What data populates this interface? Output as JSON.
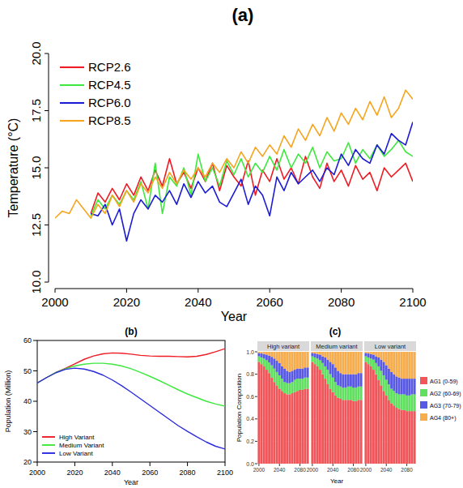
{
  "chart_data": [
    {
      "type": "line",
      "title": "(a)",
      "x_label": "Year",
      "y_label": "Temperature (°C)",
      "x": [
        2000,
        2002,
        2004,
        2006,
        2008,
        2010,
        2012,
        2014,
        2016,
        2018,
        2020,
        2022,
        2024,
        2026,
        2028,
        2030,
        2032,
        2034,
        2036,
        2038,
        2040,
        2042,
        2044,
        2046,
        2048,
        2050,
        2052,
        2054,
        2056,
        2058,
        2060,
        2062,
        2064,
        2066,
        2068,
        2070,
        2072,
        2074,
        2076,
        2078,
        2080,
        2082,
        2084,
        2086,
        2088,
        2090,
        2092,
        2094,
        2096,
        2098,
        2100
      ],
      "xlim": [
        2000,
        2100
      ],
      "xticks": [
        2000,
        2020,
        2040,
        2060,
        2080,
        2100
      ],
      "ylim": [
        10,
        20
      ],
      "yticks": [
        {
          "value": 10,
          "label": "10.0"
        },
        12.5,
        {
          "value": 15,
          "label": "15.0"
        },
        17.5,
        {
          "value": 20,
          "label": "20.0"
        }
      ],
      "legend": "top-left",
      "series": [
        {
          "name": "RCP2.6",
          "color": "#ee1c25",
          "values": [
            null,
            null,
            null,
            null,
            null,
            13.0,
            13.9,
            13.5,
            14.1,
            13.6,
            14.3,
            13.8,
            14.6,
            14.0,
            14.9,
            14.2,
            15.4,
            14.3,
            14.8,
            14.1,
            15.0,
            14.4,
            15.2,
            14.0,
            15.1,
            14.6,
            14.2,
            15.3,
            13.8,
            14.9,
            14.4,
            15.4,
            14.5,
            15.0,
            14.3,
            15.5,
            14.6,
            14.1,
            15.2,
            14.4,
            14.9,
            14.2,
            15.1,
            14.5,
            14.8,
            14.0,
            15.0,
            14.6,
            14.9,
            15.2,
            14.4
          ]
        },
        {
          "name": "RCP4.5",
          "color": "#3ee83e",
          "values": [
            null,
            null,
            null,
            null,
            null,
            12.9,
            13.6,
            13.2,
            13.8,
            13.4,
            14.0,
            13.6,
            14.4,
            13.2,
            15.2,
            13.0,
            14.6,
            14.2,
            15.0,
            13.8,
            15.6,
            14.4,
            15.0,
            14.2,
            15.3,
            14.7,
            15.4,
            14.6,
            15.2,
            14.8,
            15.5,
            14.9,
            15.8,
            15.0,
            15.6,
            15.2,
            15.9,
            15.0,
            15.7,
            15.3,
            15.4,
            16.1,
            15.2,
            15.8,
            15.4,
            16.0,
            15.5,
            15.8,
            16.2,
            15.7,
            15.5
          ]
        },
        {
          "name": "RCP6.0",
          "color": "#1c1cd4",
          "values": [
            null,
            null,
            null,
            null,
            null,
            13.0,
            12.9,
            13.4,
            12.5,
            13.2,
            11.8,
            13.0,
            13.6,
            13.2,
            13.8,
            13.5,
            14.0,
            13.4,
            14.3,
            13.7,
            14.4,
            13.9,
            14.2,
            13.5,
            13.3,
            13.9,
            14.5,
            13.4,
            14.2,
            13.8,
            12.9,
            14.6,
            14.0,
            14.8,
            14.3,
            14.6,
            14.9,
            14.4,
            15.0,
            14.7,
            15.6,
            15.1,
            15.8,
            15.4,
            15.2,
            16.0,
            15.6,
            16.5,
            16.2,
            16.0,
            17.0
          ]
        },
        {
          "name": "RCP8.5",
          "color": "#f5a51e",
          "values": [
            12.8,
            13.1,
            13.0,
            13.6,
            13.2,
            12.8,
            13.4,
            13.0,
            13.8,
            13.3,
            14.0,
            13.5,
            14.3,
            13.9,
            14.6,
            14.1,
            14.8,
            14.3,
            14.9,
            14.5,
            15.0,
            14.6,
            15.2,
            14.8,
            15.4,
            15.0,
            15.7,
            15.2,
            15.9,
            15.5,
            16.0,
            15.6,
            16.4,
            15.9,
            16.7,
            16.2,
            16.9,
            16.4,
            17.2,
            16.6,
            17.4,
            16.9,
            17.6,
            17.1,
            17.9,
            17.3,
            18.1,
            17.2,
            17.6,
            18.4,
            18.0
          ]
        }
      ]
    },
    {
      "type": "line",
      "title": "(b)",
      "x_label": "Year",
      "y_label": "Population (Million)",
      "x": [
        2000,
        2005,
        2010,
        2015,
        2020,
        2025,
        2030,
        2035,
        2040,
        2045,
        2050,
        2055,
        2060,
        2065,
        2070,
        2075,
        2080,
        2085,
        2090,
        2095,
        2100
      ],
      "xlim": [
        2000,
        2100
      ],
      "xticks": [
        2000,
        2020,
        2040,
        2060,
        2080,
        2100
      ],
      "ylim": [
        20,
        60
      ],
      "yticks": [
        20,
        30,
        40,
        50,
        60
      ],
      "legend": "bottom-left",
      "series": [
        {
          "name": "High Variant",
          "color": "#ee1c25",
          "values": [
            46,
            47.8,
            49.5,
            50.8,
            52.3,
            53.8,
            54.9,
            55.6,
            55.9,
            55.8,
            55.5,
            55.1,
            54.9,
            54.8,
            54.8,
            54.7,
            54.6,
            54.8,
            55.4,
            56.3,
            57.3
          ]
        },
        {
          "name": "Medium Variant",
          "color": "#3ee83e",
          "values": [
            46,
            47.8,
            49.5,
            50.7,
            51.6,
            52.2,
            52.5,
            52.5,
            52.2,
            51.6,
            50.7,
            49.5,
            48.2,
            46.8,
            45.3,
            43.8,
            42.4,
            41.2,
            40.0,
            39.1,
            38.4
          ]
        },
        {
          "name": "Low Variant",
          "color": "#2a2ae0",
          "values": [
            46,
            47.8,
            49.4,
            50.5,
            50.9,
            50.6,
            49.8,
            48.6,
            47.0,
            45.1,
            43.0,
            40.8,
            38.6,
            36.4,
            34.2,
            32.0,
            30.1,
            28.3,
            26.6,
            25.2,
            24.3
          ]
        }
      ]
    },
    {
      "type": "bar",
      "title": "(c)",
      "stacked": true,
      "x_label": "Year",
      "y_label": "Population Composition",
      "x": [
        2000,
        2005,
        2010,
        2015,
        2020,
        2025,
        2030,
        2035,
        2040,
        2045,
        2050,
        2055,
        2060,
        2065,
        2070,
        2075,
        2080,
        2085,
        2090,
        2095
      ],
      "xlim": [
        1997,
        2098
      ],
      "xticks": [
        2000,
        2040,
        2080
      ],
      "ylim": [
        0,
        1
      ],
      "yticks": [
        {
          "value": 0,
          "label": "0.0"
        },
        0.2,
        0.4,
        0.6,
        0.8,
        {
          "value": 1,
          "label": "1.0"
        }
      ],
      "legend": "right",
      "series": [
        {
          "name": "AG1 (0-59)",
          "color": "#f2565a"
        },
        {
          "name": "AG2 (60-69)",
          "color": "#5fe05f"
        },
        {
          "name": "AG3 (70-79)",
          "color": "#5959e8"
        },
        {
          "name": "AG4 (80+)",
          "color": "#f7ad4b"
        }
      ],
      "panels": [
        {
          "title": "High variant",
          "values": [
            [
              0.91,
              0.89,
              0.87,
              0.84,
              0.81,
              0.77,
              0.73,
              0.7,
              0.67,
              0.65,
              0.63,
              0.62,
              0.62,
              0.63,
              0.64,
              0.65,
              0.66,
              0.66,
              0.67,
              0.67
            ],
            [
              0.05,
              0.06,
              0.07,
              0.085,
              0.095,
              0.11,
              0.12,
              0.12,
              0.12,
              0.11,
              0.1,
              0.1,
              0.1,
              0.1,
              0.11,
              0.11,
              0.1,
              0.1,
              0.1,
              0.1
            ],
            [
              0.03,
              0.035,
              0.04,
              0.05,
              0.06,
              0.075,
              0.09,
              0.1,
              0.11,
              0.11,
              0.12,
              0.11,
              0.1,
              0.1,
              0.09,
              0.09,
              0.09,
              0.09,
              0.09,
              0.09
            ],
            [
              0.01,
              0.015,
              0.02,
              0.025,
              0.035,
              0.045,
              0.06,
              0.08,
              0.1,
              0.13,
              0.15,
              0.17,
              0.18,
              0.17,
              0.16,
              0.15,
              0.15,
              0.15,
              0.14,
              0.14
            ]
          ]
        },
        {
          "title": "Medium variant",
          "values": [
            [
              0.91,
              0.89,
              0.87,
              0.84,
              0.8,
              0.76,
              0.71,
              0.67,
              0.64,
              0.61,
              0.59,
              0.58,
              0.57,
              0.57,
              0.57,
              0.57,
              0.56,
              0.56,
              0.57,
              0.57
            ],
            [
              0.05,
              0.06,
              0.07,
              0.085,
              0.1,
              0.11,
              0.13,
              0.13,
              0.13,
              0.12,
              0.11,
              0.11,
              0.11,
              0.11,
              0.12,
              0.12,
              0.12,
              0.12,
              0.12,
              0.12
            ],
            [
              0.03,
              0.035,
              0.04,
              0.05,
              0.06,
              0.08,
              0.09,
              0.11,
              0.12,
              0.13,
              0.13,
              0.12,
              0.12,
              0.12,
              0.11,
              0.11,
              0.12,
              0.12,
              0.12,
              0.12
            ],
            [
              0.01,
              0.015,
              0.02,
              0.025,
              0.04,
              0.05,
              0.07,
              0.09,
              0.11,
              0.14,
              0.17,
              0.19,
              0.2,
              0.2,
              0.2,
              0.2,
              0.2,
              0.2,
              0.19,
              0.19
            ]
          ]
        },
        {
          "title": "Low variant",
          "values": [
            [
              0.91,
              0.89,
              0.87,
              0.84,
              0.8,
              0.75,
              0.7,
              0.65,
              0.61,
              0.57,
              0.54,
              0.52,
              0.5,
              0.49,
              0.48,
              0.48,
              0.47,
              0.47,
              0.47,
              0.47
            ],
            [
              0.05,
              0.06,
              0.07,
              0.09,
              0.1,
              0.12,
              0.13,
              0.14,
              0.14,
              0.14,
              0.13,
              0.13,
              0.13,
              0.13,
              0.14,
              0.14,
              0.14,
              0.14,
              0.15,
              0.15
            ],
            [
              0.03,
              0.035,
              0.04,
              0.045,
              0.06,
              0.08,
              0.1,
              0.12,
              0.13,
              0.14,
              0.15,
              0.15,
              0.15,
              0.15,
              0.14,
              0.14,
              0.15,
              0.15,
              0.14,
              0.14
            ],
            [
              0.01,
              0.015,
              0.02,
              0.025,
              0.04,
              0.05,
              0.07,
              0.09,
              0.12,
              0.15,
              0.18,
              0.2,
              0.22,
              0.23,
              0.24,
              0.24,
              0.24,
              0.24,
              0.24,
              0.24
            ]
          ]
        }
      ]
    }
  ]
}
